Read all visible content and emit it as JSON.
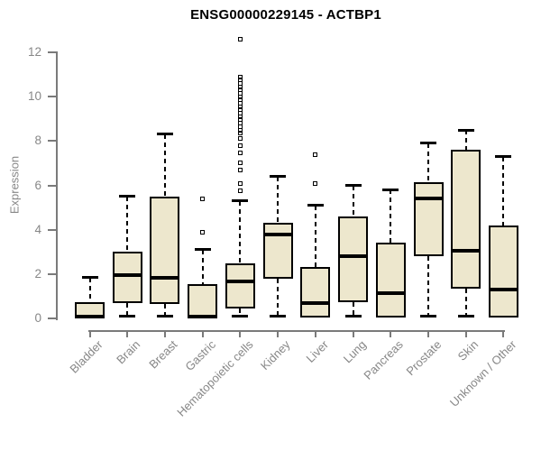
{
  "page": {
    "background": "#ffffff"
  },
  "chart_data": {
    "type": "boxplot",
    "title": "ENSG00000229145 - ACTBP1",
    "xlabel": "",
    "ylabel": "Expression",
    "ylim": [
      0,
      12.7
    ],
    "yticks": [
      0,
      2,
      4,
      6,
      8,
      10,
      12
    ],
    "grid": false,
    "legend": null,
    "categories": [
      "Bladder",
      "Brain",
      "Breast",
      "Gastric",
      "Hematopoietic cells",
      "Kidney",
      "Liver",
      "Lung",
      "Pancreas",
      "Prostate",
      "Skin",
      "Unknown / Other"
    ],
    "series": [
      {
        "category": "Bladder",
        "low": 0,
        "q1": 0,
        "median": 0.1,
        "q3": 0.75,
        "high": 1.85,
        "outliers": []
      },
      {
        "category": "Brain",
        "low": 0.1,
        "q1": 0.7,
        "median": 1.95,
        "q3": 3.0,
        "high": 5.5,
        "outliers": []
      },
      {
        "category": "Breast",
        "low": 0.1,
        "q1": 0.65,
        "median": 1.85,
        "q3": 5.5,
        "high": 8.3,
        "outliers": []
      },
      {
        "category": "Gastric",
        "low": 0,
        "q1": 0,
        "median": 0.1,
        "q3": 1.55,
        "high": 3.1,
        "outliers": [
          3.9,
          5.4
        ]
      },
      {
        "category": "Hematopoietic cells",
        "low": 0.1,
        "q1": 0.45,
        "median": 1.65,
        "q3": 2.5,
        "high": 5.3,
        "outliers": [
          5.75,
          6.1,
          6.7,
          7.0,
          7.45,
          7.8,
          8.1,
          8.35,
          8.5,
          8.65,
          8.8,
          8.95,
          9.1,
          9.25,
          9.4,
          9.55,
          9.7,
          9.85,
          10.0,
          10.15,
          10.3,
          10.45,
          10.6,
          10.75,
          10.9,
          12.6
        ]
      },
      {
        "category": "Kidney",
        "low": 0.1,
        "q1": 1.8,
        "median": 3.8,
        "q3": 4.3,
        "high": 6.4,
        "outliers": []
      },
      {
        "category": "Liver",
        "low": 0.05,
        "q1": 0.05,
        "median": 0.7,
        "q3": 2.3,
        "high": 5.1,
        "outliers": [
          6.1,
          7.4
        ]
      },
      {
        "category": "Lung",
        "low": 0.1,
        "q1": 0.75,
        "median": 2.8,
        "q3": 4.6,
        "high": 6.0,
        "outliers": []
      },
      {
        "category": "Pancreas",
        "low": 0.05,
        "q1": 0.05,
        "median": 1.15,
        "q3": 3.4,
        "high": 5.8,
        "outliers": []
      },
      {
        "category": "Prostate",
        "low": 0.1,
        "q1": 2.8,
        "median": 5.4,
        "q3": 6.15,
        "high": 7.9,
        "outliers": []
      },
      {
        "category": "Skin",
        "low": 0.1,
        "q1": 1.35,
        "median": 3.05,
        "q3": 7.6,
        "high": 8.5,
        "outliers": []
      },
      {
        "category": "Unknown / Other",
        "low": 0.05,
        "q1": 0.05,
        "median": 1.3,
        "q3": 4.2,
        "high": 7.3,
        "outliers": []
      }
    ],
    "colors": {
      "box_fill": "#EDE7CD",
      "box_border": "#000000",
      "median": "#000000",
      "whisker": "#000000",
      "axis": "#7A7A7A",
      "label": "#878787",
      "title": "#000000"
    }
  }
}
